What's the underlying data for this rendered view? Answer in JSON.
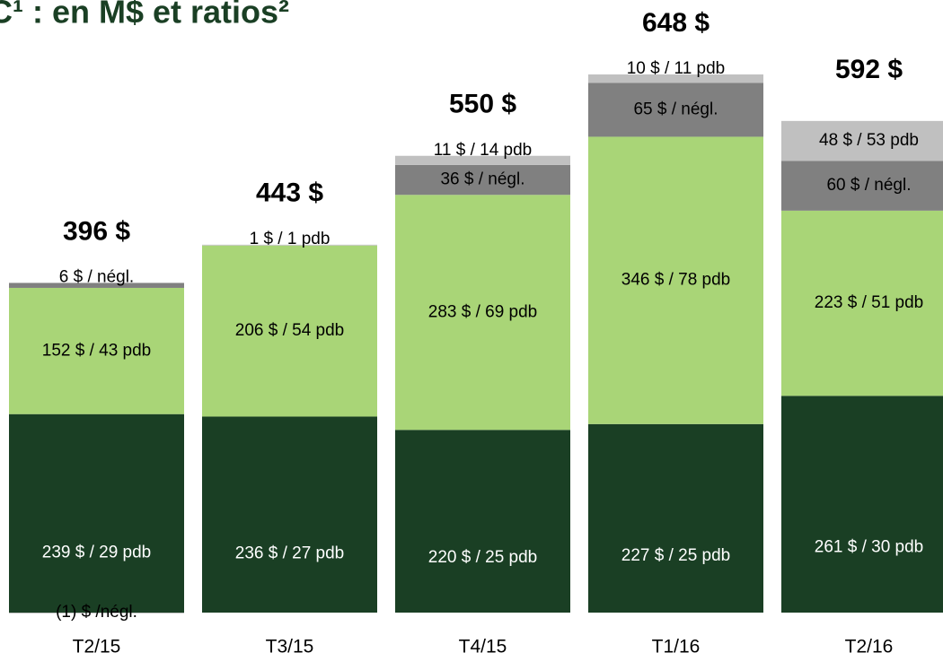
{
  "chart_data": {
    "type": "stacked-bar",
    "title": "C¹ : en M$ et ratios²",
    "categories": [
      "T2/15",
      "T3/15",
      "T4/15",
      "T1/16",
      "T2/16"
    ],
    "totals": {
      "values": [
        396,
        443,
        550,
        648,
        592
      ],
      "value_labels": [
        "396 $",
        "443 $",
        "550 $",
        "648 $",
        "592 $"
      ]
    },
    "series": [
      {
        "color": "#1a3f24",
        "values": [
          239,
          236,
          220,
          227,
          261
        ],
        "value_labels": [
          "239 $ / 29 pdb",
          "236 $ / 27 pdb",
          "220 $ / 25 pdb",
          "227 $ / 25 pdb",
          "261 $ / 30 pdb"
        ]
      },
      {
        "color": "#a9d577",
        "values": [
          152,
          206,
          283,
          346,
          223
        ],
        "value_labels": [
          "152 $ / 43 pdb",
          "206 $ / 54 pdb",
          "283 $ / 69 pdb",
          "346 $ / 78 pdb",
          "223 $ / 51 pdb"
        ]
      },
      {
        "color": "#808080",
        "values": [
          6,
          null,
          36,
          65,
          60
        ],
        "value_labels": [
          "6 $ / négl.",
          null,
          "36 $ / négl.",
          "65 $ / négl.",
          "60 $ / négl."
        ]
      },
      {
        "color": "#c0c0c0",
        "values": [
          -1,
          1,
          11,
          10,
          48
        ],
        "value_labels": [
          "(1) $ /négl.",
          "1 $ / 1 pdb",
          "11 $ / 14 pdb",
          "10 $ / 11 pdb",
          "48 $ / 53 pdb"
        ]
      }
    ]
  }
}
